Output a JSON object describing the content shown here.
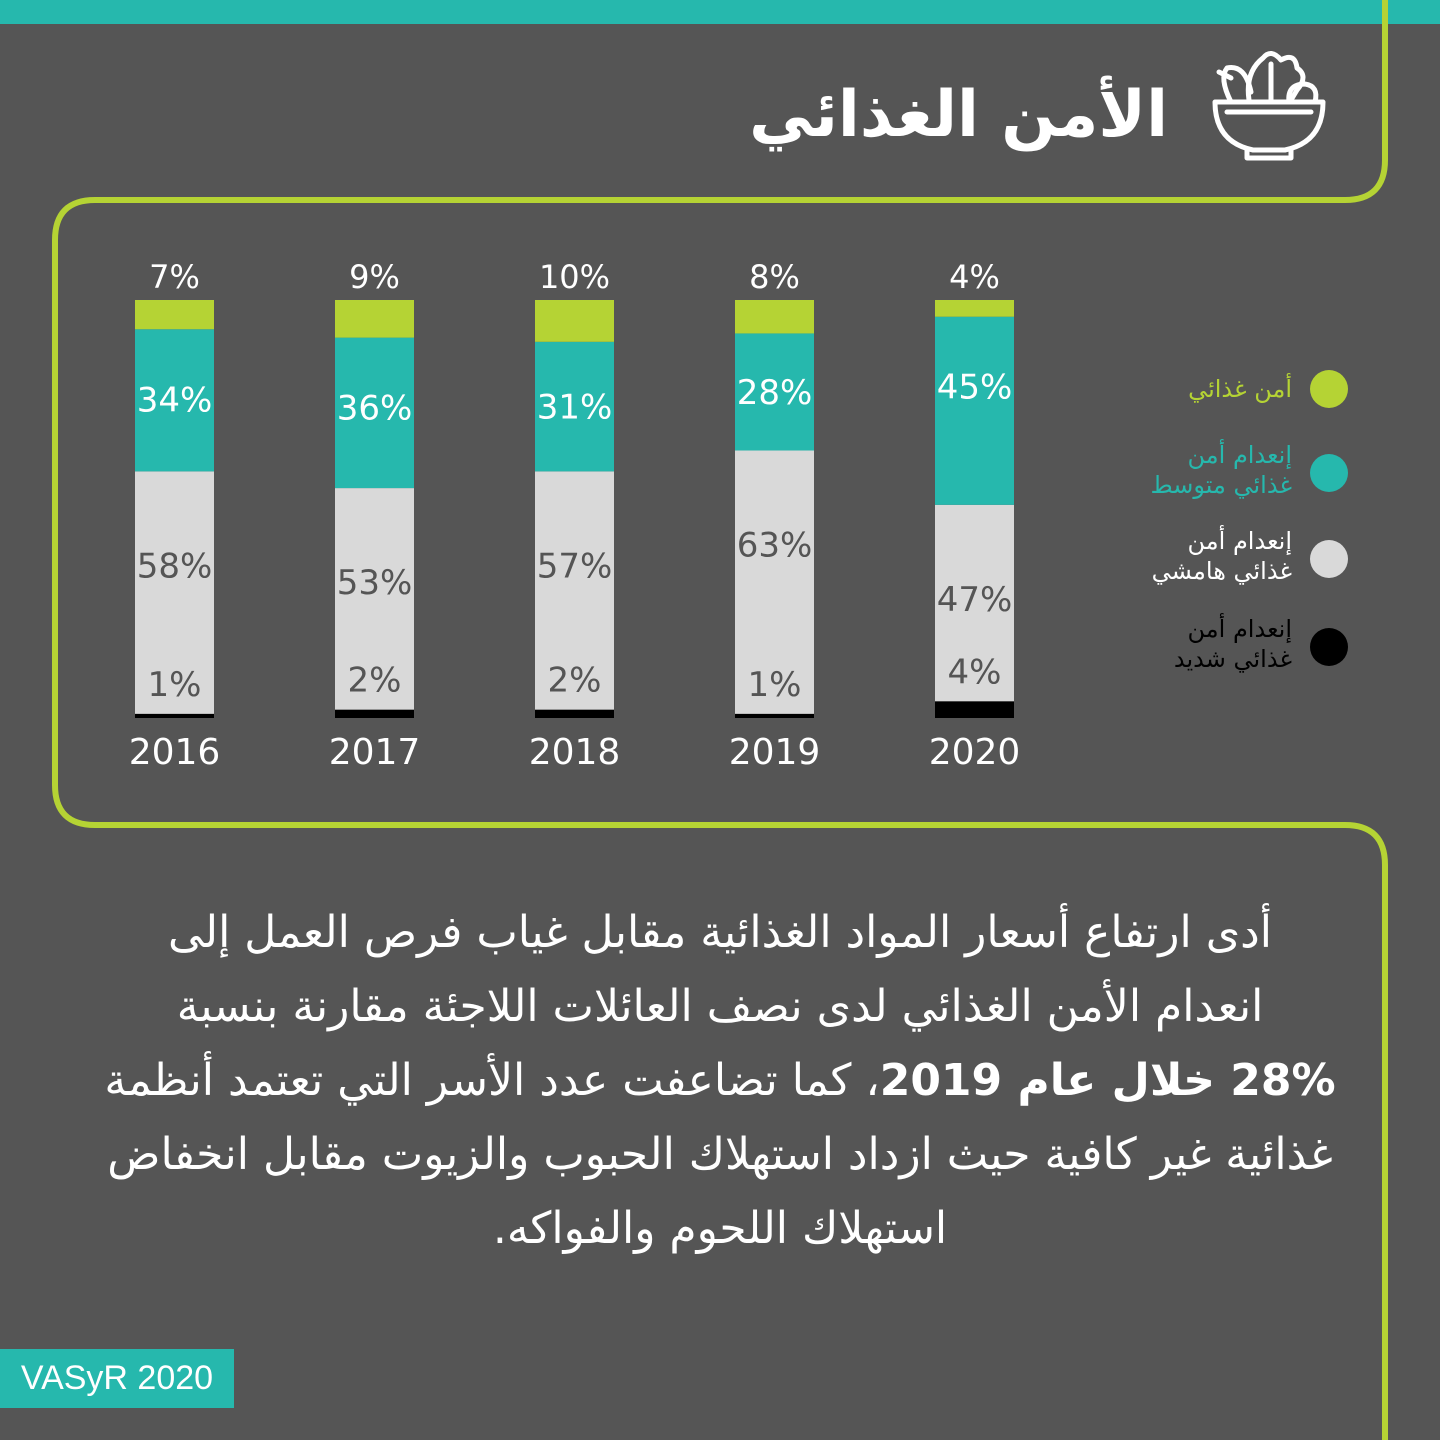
{
  "title": "الأمن الغذائي",
  "icon": "salad-bowl-icon",
  "colors": {
    "background": "#555555",
    "accent_green": "#b5d334",
    "teal": "#26b8ad",
    "light_gray": "#d9d9d9",
    "black": "#000000"
  },
  "chart_data": {
    "type": "bar",
    "stacked": true,
    "categories": [
      "2016",
      "2017",
      "2018",
      "2019",
      "2020"
    ],
    "series": [
      {
        "name": "إنعدام أمن غذائي شديد",
        "color": "#000000",
        "values": [
          1,
          2,
          2,
          1,
          4
        ]
      },
      {
        "name": "إنعدام أمن غذائي هامشي",
        "color": "#d9d9d9",
        "values": [
          58,
          53,
          57,
          63,
          47
        ]
      },
      {
        "name": "إنعدام أمن غذائي متوسط",
        "color": "#26b8ad",
        "values": [
          34,
          36,
          31,
          28,
          45
        ]
      },
      {
        "name": "أمن غذائي",
        "color": "#b5d334",
        "values": [
          7,
          9,
          10,
          8,
          4
        ]
      }
    ],
    "labels": {
      "secure": [
        "7%",
        "9%",
        "10%",
        "8%",
        "4%"
      ],
      "moderate": [
        "34%",
        "36%",
        "31%",
        "28%",
        "45%"
      ],
      "marginal": [
        "58%",
        "53%",
        "57%",
        "63%",
        "47%"
      ],
      "severe": [
        "1%",
        "2%",
        "2%",
        "1%",
        "4%"
      ]
    },
    "legend_position": "right",
    "grid": false
  },
  "legend": [
    {
      "lines": [
        "أمن غذائي"
      ],
      "color": "#b5d334",
      "text_color": "#b5d334"
    },
    {
      "lines": [
        "إنعدام أمن",
        "غذائي متوسط"
      ],
      "color": "#26b8ad",
      "text_color": "#26b8ad"
    },
    {
      "lines": [
        "إنعدام أمن",
        "غذائي هامشي"
      ],
      "color": "#d9d9d9",
      "text_color": "#ffffff"
    },
    {
      "lines": [
        "إنعدام أمن",
        "غذائي شديد"
      ],
      "color": "#000000",
      "text_color": "#000000"
    }
  ],
  "body": {
    "line1": "أدى ارتفاع أسعار المواد الغذائية مقابل غياب فرص العمل إلى",
    "line2": "انعدام الأمن الغذائي لدى نصف العائلات اللاجئة مقارنة بنسبة",
    "line3_bold": "28% خلال عام 2019",
    "line3_rest": "، كما تضاعفت عدد الأسر التي تعتمد أنظمة",
    "line4": "غذائية غير كافية حيث ازداد استهلاك الحبوب والزيوت مقابل انخفاض",
    "line5": "استهلاك اللحوم والفواكه."
  },
  "source": "VASyR 2020"
}
